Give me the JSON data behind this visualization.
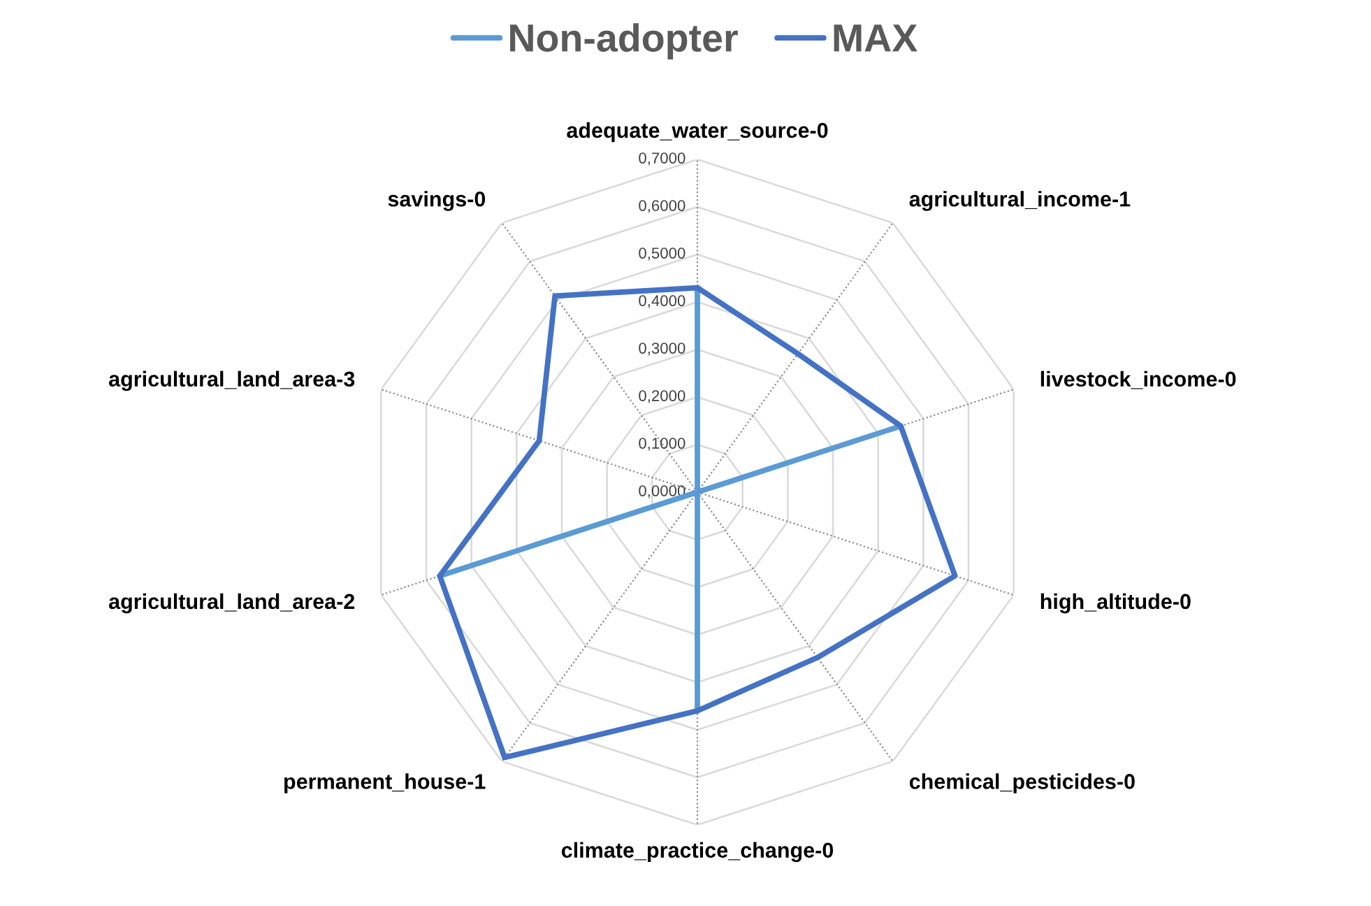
{
  "chart_data": {
    "type": "radar",
    "categories": [
      "adequate_water_source-0",
      "agricultural_income-1",
      "livestock_income-0",
      "high_altitude-0",
      "chemical_pesticides-0",
      "climate_practice_change-0",
      "permanent_house-1",
      "agricultural_land_area-2",
      "agricultural_land_area-3",
      "savings-0"
    ],
    "series": [
      {
        "name": "Non-adopter",
        "color": "#5b9bd5",
        "values": [
          0.43,
          0,
          0.45,
          0,
          0,
          0.46,
          0,
          0.57,
          0,
          0
        ]
      },
      {
        "name": "MAX",
        "color": "#4472c4",
        "values": [
          0.43,
          0.36,
          0.45,
          0.57,
          0.43,
          0.46,
          0.69,
          0.57,
          0.35,
          0.51
        ]
      }
    ],
    "ylim": [
      0,
      0.7
    ],
    "yticks": [
      {
        "value": 0,
        "label": "0,0000"
      },
      {
        "value": 0.1,
        "label": "0,1000"
      },
      {
        "value": 0.2,
        "label": "0,2000"
      },
      {
        "value": 0.3,
        "label": "0,3000"
      },
      {
        "value": 0.4,
        "label": "0,4000"
      },
      {
        "value": 0.5,
        "label": "0,5000"
      },
      {
        "value": 0.6,
        "label": "0,6000"
      },
      {
        "value": 0.7,
        "label": "0,7000"
      }
    ],
    "grid": true,
    "legend": "top",
    "marker": "none",
    "line_style": "solid"
  }
}
